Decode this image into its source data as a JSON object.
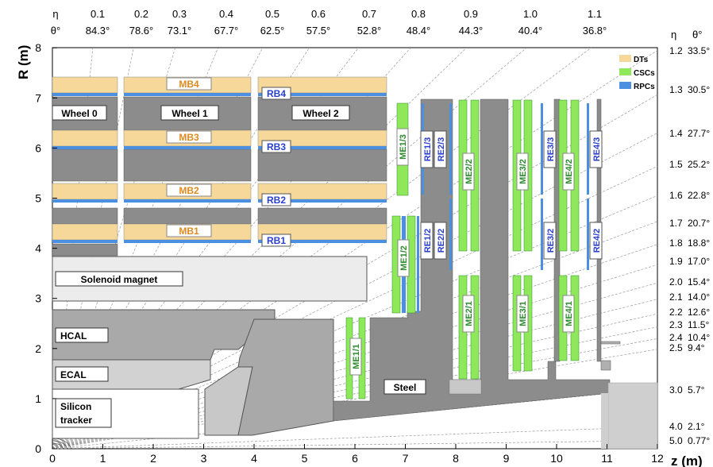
{
  "axes": {
    "y_title": "R (m)",
    "x_title": "z (m)",
    "y_ticks": [
      "0",
      "1",
      "2",
      "3",
      "4",
      "5",
      "6",
      "7",
      "8"
    ],
    "x_ticks": [
      "0",
      "1",
      "2",
      "3",
      "4",
      "5",
      "6",
      "7",
      "8",
      "9",
      "10",
      "11",
      "12"
    ]
  },
  "eta_top": {
    "eta_label": "η",
    "theta_label": "θ°",
    "eta": [
      "0.1",
      "0.2",
      "0.3",
      "0.4",
      "0.5",
      "0.6",
      "0.7",
      "0.8",
      "0.9",
      "1.0",
      "1.1"
    ],
    "theta": [
      "84.3°",
      "78.6°",
      "73.1°",
      "67.7°",
      "62.5°",
      "57.5°",
      "52.8°",
      "48.4°",
      "44.3°",
      "40.4°",
      "36.8°"
    ]
  },
  "eta_right": {
    "eta_label": "η",
    "theta_label": "θ°",
    "eta": [
      "1.2",
      "1.3",
      "1.4",
      "1.5",
      "1.6",
      "1.7",
      "1.8",
      "1.9",
      "2.0",
      "2.1",
      "2.2",
      "2.3",
      "2.4",
      "2.5",
      "3.0",
      "4.0",
      "5.0"
    ],
    "theta": [
      "33.5°",
      "30.5°",
      "27.7°",
      "25.2°",
      "22.8°",
      "20.7°",
      "18.8°",
      "17.0°",
      "15.4°",
      "14.0°",
      "12.6°",
      "11.5°",
      "10.4°",
      "9.4°",
      "5.7°",
      "2.1°",
      "0.77°"
    ]
  },
  "legend": [
    {
      "label": "DTs",
      "color": "#f5d89a"
    },
    {
      "label": "CSCs",
      "color": "#8fe85a"
    },
    {
      "label": "RPCs",
      "color": "#4a8fe0"
    }
  ],
  "wheels": [
    "Wheel 0",
    "Wheel 1",
    "Wheel 2"
  ],
  "mb_labels": [
    "MB4",
    "MB3",
    "MB2",
    "MB1"
  ],
  "rb_labels": [
    "RB4",
    "RB3",
    "RB2",
    "RB1"
  ],
  "me_labels": [
    "ME1/3",
    "ME1/2",
    "ME1/1",
    "ME2/2",
    "ME2/1",
    "ME3/2",
    "ME3/1",
    "ME4/2",
    "ME4/1"
  ],
  "re_labels": [
    "RE1/3",
    "RE2/3",
    "RE1/2",
    "RE2/2",
    "RE3/3",
    "RE3/2",
    "RE4/3",
    "RE4/2"
  ],
  "inner": {
    "solenoid": "Solenoid magnet",
    "hcal": "HCAL",
    "ecal": "ECAL",
    "tracker_1": "Silicon",
    "tracker_2": "tracker",
    "steel": "Steel"
  },
  "colors": {
    "steel": "#8c8c8c",
    "dt": "#f5d89a",
    "csc": "#8fe85a",
    "rpc": "#4a8fe0",
    "mb_text": "#e08a1e",
    "rb_text": "#2a3fd0",
    "me_text": "#2e8b2e"
  }
}
